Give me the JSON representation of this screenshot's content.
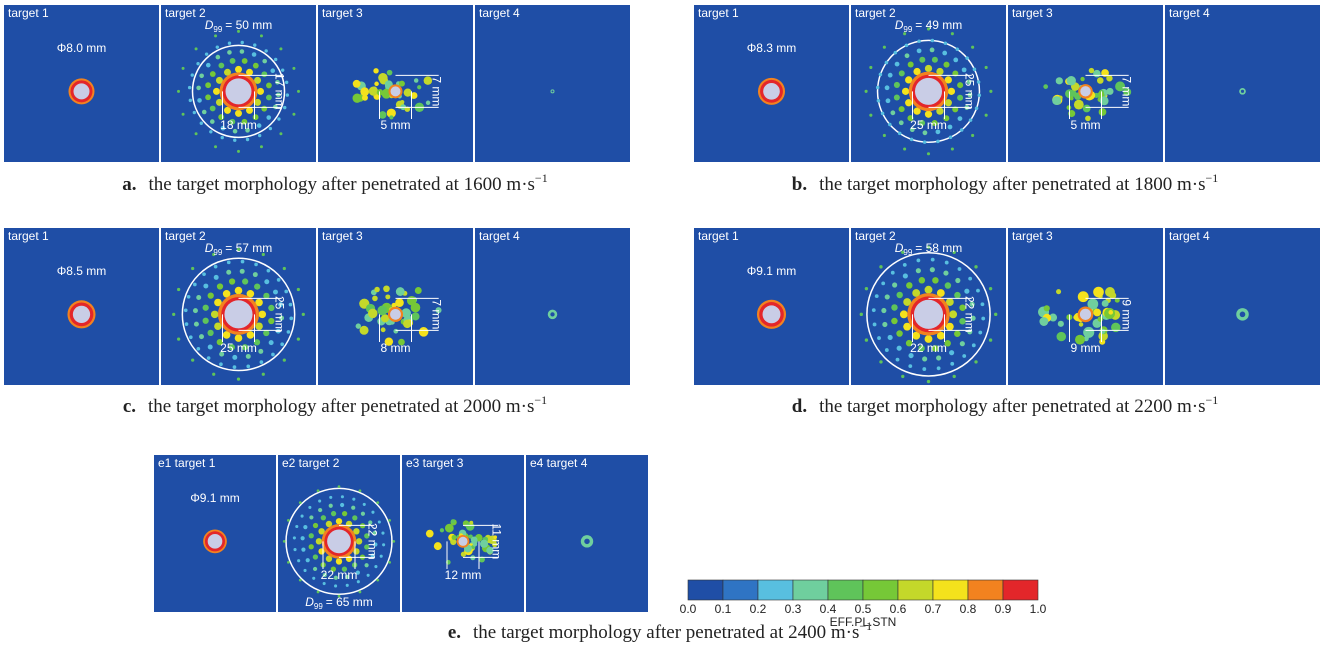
{
  "groups": [
    {
      "label": "a.",
      "caption": "the target morphology after penetrated at 1600 m·s",
      "sup": "−1",
      "targets": [
        {
          "title": "target 1",
          "hole": "Φ8.0 mm"
        },
        {
          "title": "target 2",
          "diameter": {
            "symbol": "D",
            "sub": "99",
            "value": "= 50 mm"
          },
          "vertical": "17 mm",
          "horizontal": "18 mm"
        },
        {
          "title": "target 3",
          "vertical": "7 mm",
          "horizontal": "5 mm"
        },
        {
          "title": "target 4"
        }
      ]
    },
    {
      "label": "b.",
      "caption": "the target morphology after penetrated at 1800 m·s",
      "sup": "−1",
      "targets": [
        {
          "title": "target 1",
          "hole": "Φ8.3 mm"
        },
        {
          "title": "target 2",
          "diameter": {
            "symbol": "D",
            "sub": "99",
            "value": "= 49 mm"
          },
          "vertical": "25 mm",
          "horizontal": "25 mm"
        },
        {
          "title": "target 3",
          "vertical": "7 mm",
          "horizontal": "5 mm"
        },
        {
          "title": "target 4"
        }
      ]
    },
    {
      "label": "c.",
      "caption": "the target morphology after penetrated at 2000 m·s",
      "sup": "−1",
      "targets": [
        {
          "title": "target 1",
          "hole": "Φ8.5 mm"
        },
        {
          "title": "target 2",
          "diameter": {
            "symbol": "D",
            "sub": "99",
            "value": "= 57 mm"
          },
          "vertical": "25 mm",
          "horizontal": "25 mm"
        },
        {
          "title": "target 3",
          "vertical": "7 mm",
          "horizontal": "8 mm"
        },
        {
          "title": "target 4"
        }
      ]
    },
    {
      "label": "d.",
      "caption": "the target morphology after penetrated at 2200 m·s",
      "sup": "−1",
      "targets": [
        {
          "title": "target 1",
          "hole": "Φ9.1 mm"
        },
        {
          "title": "target 2",
          "diameter": {
            "symbol": "D",
            "sub": "99",
            "value": "= 58 mm"
          },
          "vertical": "22 mm",
          "horizontal": "22 mm"
        },
        {
          "title": "target 3",
          "vertical": "9 mm",
          "horizontal": "9 mm"
        },
        {
          "title": "target 4"
        }
      ]
    },
    {
      "label": "e.",
      "caption": "the target morphology after penetrated at 2400 m·s",
      "sup": "−1",
      "targets": [
        {
          "title": "e1 target 1",
          "hole": "Φ9.1 mm"
        },
        {
          "title": "e2 target 2",
          "diameter": {
            "symbol": "D",
            "sub": "99",
            "value": "= 65 mm"
          },
          "vertical": "22 mm",
          "horizontal": "22 mm"
        },
        {
          "title": "e3 target 3",
          "vertical": "11 mm",
          "horizontal": "12 mm"
        },
        {
          "title": "e4 target 4"
        }
      ]
    }
  ],
  "colorbar": {
    "colors": [
      "#1f4ea6",
      "#2f74c4",
      "#58bfe0",
      "#6fcf9e",
      "#5fc45a",
      "#76c837",
      "#c4d82a",
      "#f4e21c",
      "#f2821f",
      "#e3262a"
    ],
    "ticks": [
      "0.0",
      "0.1",
      "0.2",
      "0.3",
      "0.4",
      "0.5",
      "0.6",
      "0.7",
      "0.8",
      "0.9",
      "1.0"
    ],
    "label": "EFF.PL.STN"
  }
}
